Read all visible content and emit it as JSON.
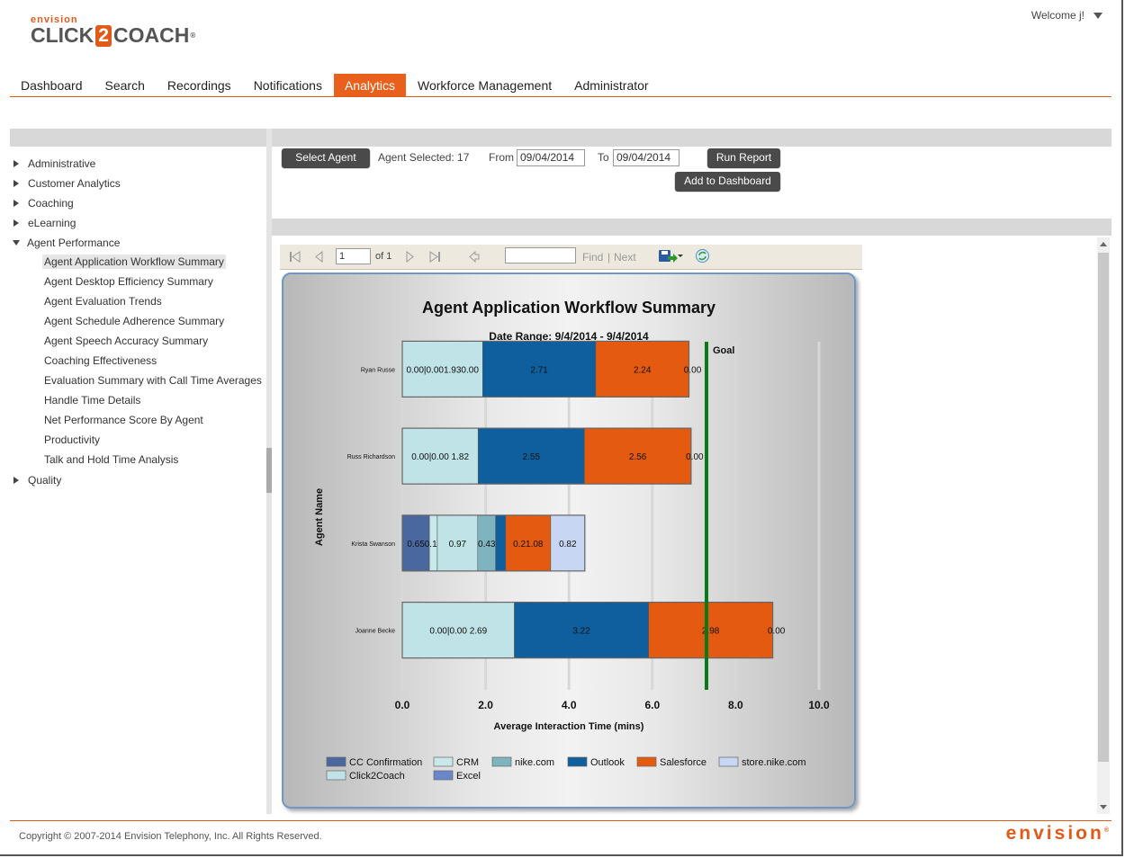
{
  "header": {
    "logo_small": "envision",
    "logo_left": "CLICK",
    "logo_mid": "2",
    "logo_right": "COACH",
    "logo_reg": "®",
    "welcome": "Welcome j!"
  },
  "nav": {
    "tabs": [
      "Dashboard",
      "Search",
      "Recordings",
      "Notifications",
      "Analytics",
      "Workforce Management",
      "Administrator"
    ],
    "active": "Analytics"
  },
  "sidebar": {
    "groups": [
      {
        "label": "Administrative",
        "expanded": false
      },
      {
        "label": "Customer Analytics",
        "expanded": false
      },
      {
        "label": "Coaching",
        "expanded": false
      },
      {
        "label": "eLearning",
        "expanded": false
      },
      {
        "label": "Agent Performance",
        "expanded": true
      },
      {
        "label": "Quality",
        "expanded": false
      }
    ],
    "agent_performance_items": [
      "Agent Application Workflow Summary",
      "Agent Desktop Efficiency Summary",
      "Agent Evaluation Trends",
      "Agent Schedule Adherence Summary",
      "Agent Speech Accuracy Summary",
      "Coaching Effectiveness",
      "Evaluation Summary with Call Time Averages",
      "Handle Time Details",
      "Net Performance Score By Agent",
      "Productivity",
      "Talk and Hold Time Analysis"
    ],
    "selected": "Agent Application Workflow Summary"
  },
  "controls": {
    "select_agent": "Select Agent",
    "agent_selected": "Agent Selected: 17",
    "from_label": "From",
    "from_value": "09/04/2014",
    "to_label": "To",
    "to_value": "09/04/2014",
    "run_report": "Run Report",
    "add_to_dashboard": "Add to Dashboard"
  },
  "report_toolbar": {
    "page_value": "1",
    "of_label": "of 1",
    "find": "Find",
    "separator": "|",
    "next": "Next"
  },
  "chart_data": {
    "type": "bar",
    "orientation": "horizontal-stacked",
    "title": "Agent Application Workflow Summary",
    "subtitle": "Date Range: 9/4/2014 - 9/4/2014",
    "xlabel": "Average Interaction Time (mins)",
    "ylabel": "Agent Name",
    "xlim": [
      0,
      10
    ],
    "xticks": [
      "0.0",
      "2.0",
      "4.0",
      "6.0",
      "8.0",
      "10.0"
    ],
    "goal_label": "Goal",
    "goal_value": 7.3,
    "categories": [
      "Ryan Russell",
      "Russ Richardson",
      "Krista Swanson",
      "Joanne Becker"
    ],
    "agent_labels": [
      "Ryan Russe",
      "Russ Richardson",
      "Krista Swanson",
      "Joanne Becke"
    ],
    "segments": [
      [
        {
          "series": "Click2Coach",
          "value": 1.93,
          "label": "0.00|0.001.930.00"
        },
        {
          "series": "Outlook",
          "value": 2.71,
          "label": "2.71"
        },
        {
          "series": "Salesforce",
          "value": 2.24,
          "label": "2.24"
        },
        {
          "series": "store.nike.com",
          "value": 0.0,
          "label": "0.00"
        }
      ],
      [
        {
          "series": "Click2Coach",
          "value": 1.82,
          "label": "0.00|0.00 1.82"
        },
        {
          "series": "Outlook",
          "value": 2.55,
          "label": "2.55"
        },
        {
          "series": "Salesforce",
          "value": 2.56,
          "label": "2.56"
        },
        {
          "series": "store.nike.com",
          "value": 0.0,
          "label": "0.00"
        }
      ],
      [
        {
          "series": "CC Confirmation",
          "value": 0.65,
          "label": "0.65"
        },
        {
          "series": "CRM",
          "value": 0.19,
          "label": "0.19"
        },
        {
          "series": "Click2Coach",
          "value": 0.97,
          "label": "0.97"
        },
        {
          "series": "nike.com",
          "value": 0.43,
          "label": "0.43"
        },
        {
          "series": "Outlook",
          "value": 0.24,
          "label": ""
        },
        {
          "series": "Salesforce",
          "value": 1.08,
          "label": "0.21.08"
        },
        {
          "series": "store.nike.com",
          "value": 0.82,
          "label": "0.82"
        }
      ],
      [
        {
          "series": "Click2Coach",
          "value": 2.69,
          "label": "0.00|0.00 2.69"
        },
        {
          "series": "Outlook",
          "value": 3.22,
          "label": "3.22"
        },
        {
          "series": "Salesforce",
          "value": 2.98,
          "label": "2.98"
        },
        {
          "series": "store.nike.com",
          "value": 0.0,
          "label": "0.00"
        }
      ]
    ],
    "legend": [
      {
        "name": "CC Confirmation",
        "color": "#4a67a0"
      },
      {
        "name": "CRM",
        "color": "#c9e8ea"
      },
      {
        "name": "nike.com",
        "color": "#7eb4bf"
      },
      {
        "name": "Outlook",
        "color": "#0f5f9e"
      },
      {
        "name": "Salesforce",
        "color": "#e35a10"
      },
      {
        "name": "store.nike.com",
        "color": "#c7d6f2"
      },
      {
        "name": "Click2Coach",
        "color": "#bfe3e6"
      },
      {
        "name": "Excel",
        "color": "#6a88c9"
      }
    ],
    "goal_color": "#0a7a18",
    "legend_placement": "bottom",
    "grid": true
  },
  "footer": {
    "copyright": "Copyright © 2007-2014 Envision Telephony, Inc. All Rights Reserved.",
    "logo": "envision",
    "logo_reg": "®"
  }
}
